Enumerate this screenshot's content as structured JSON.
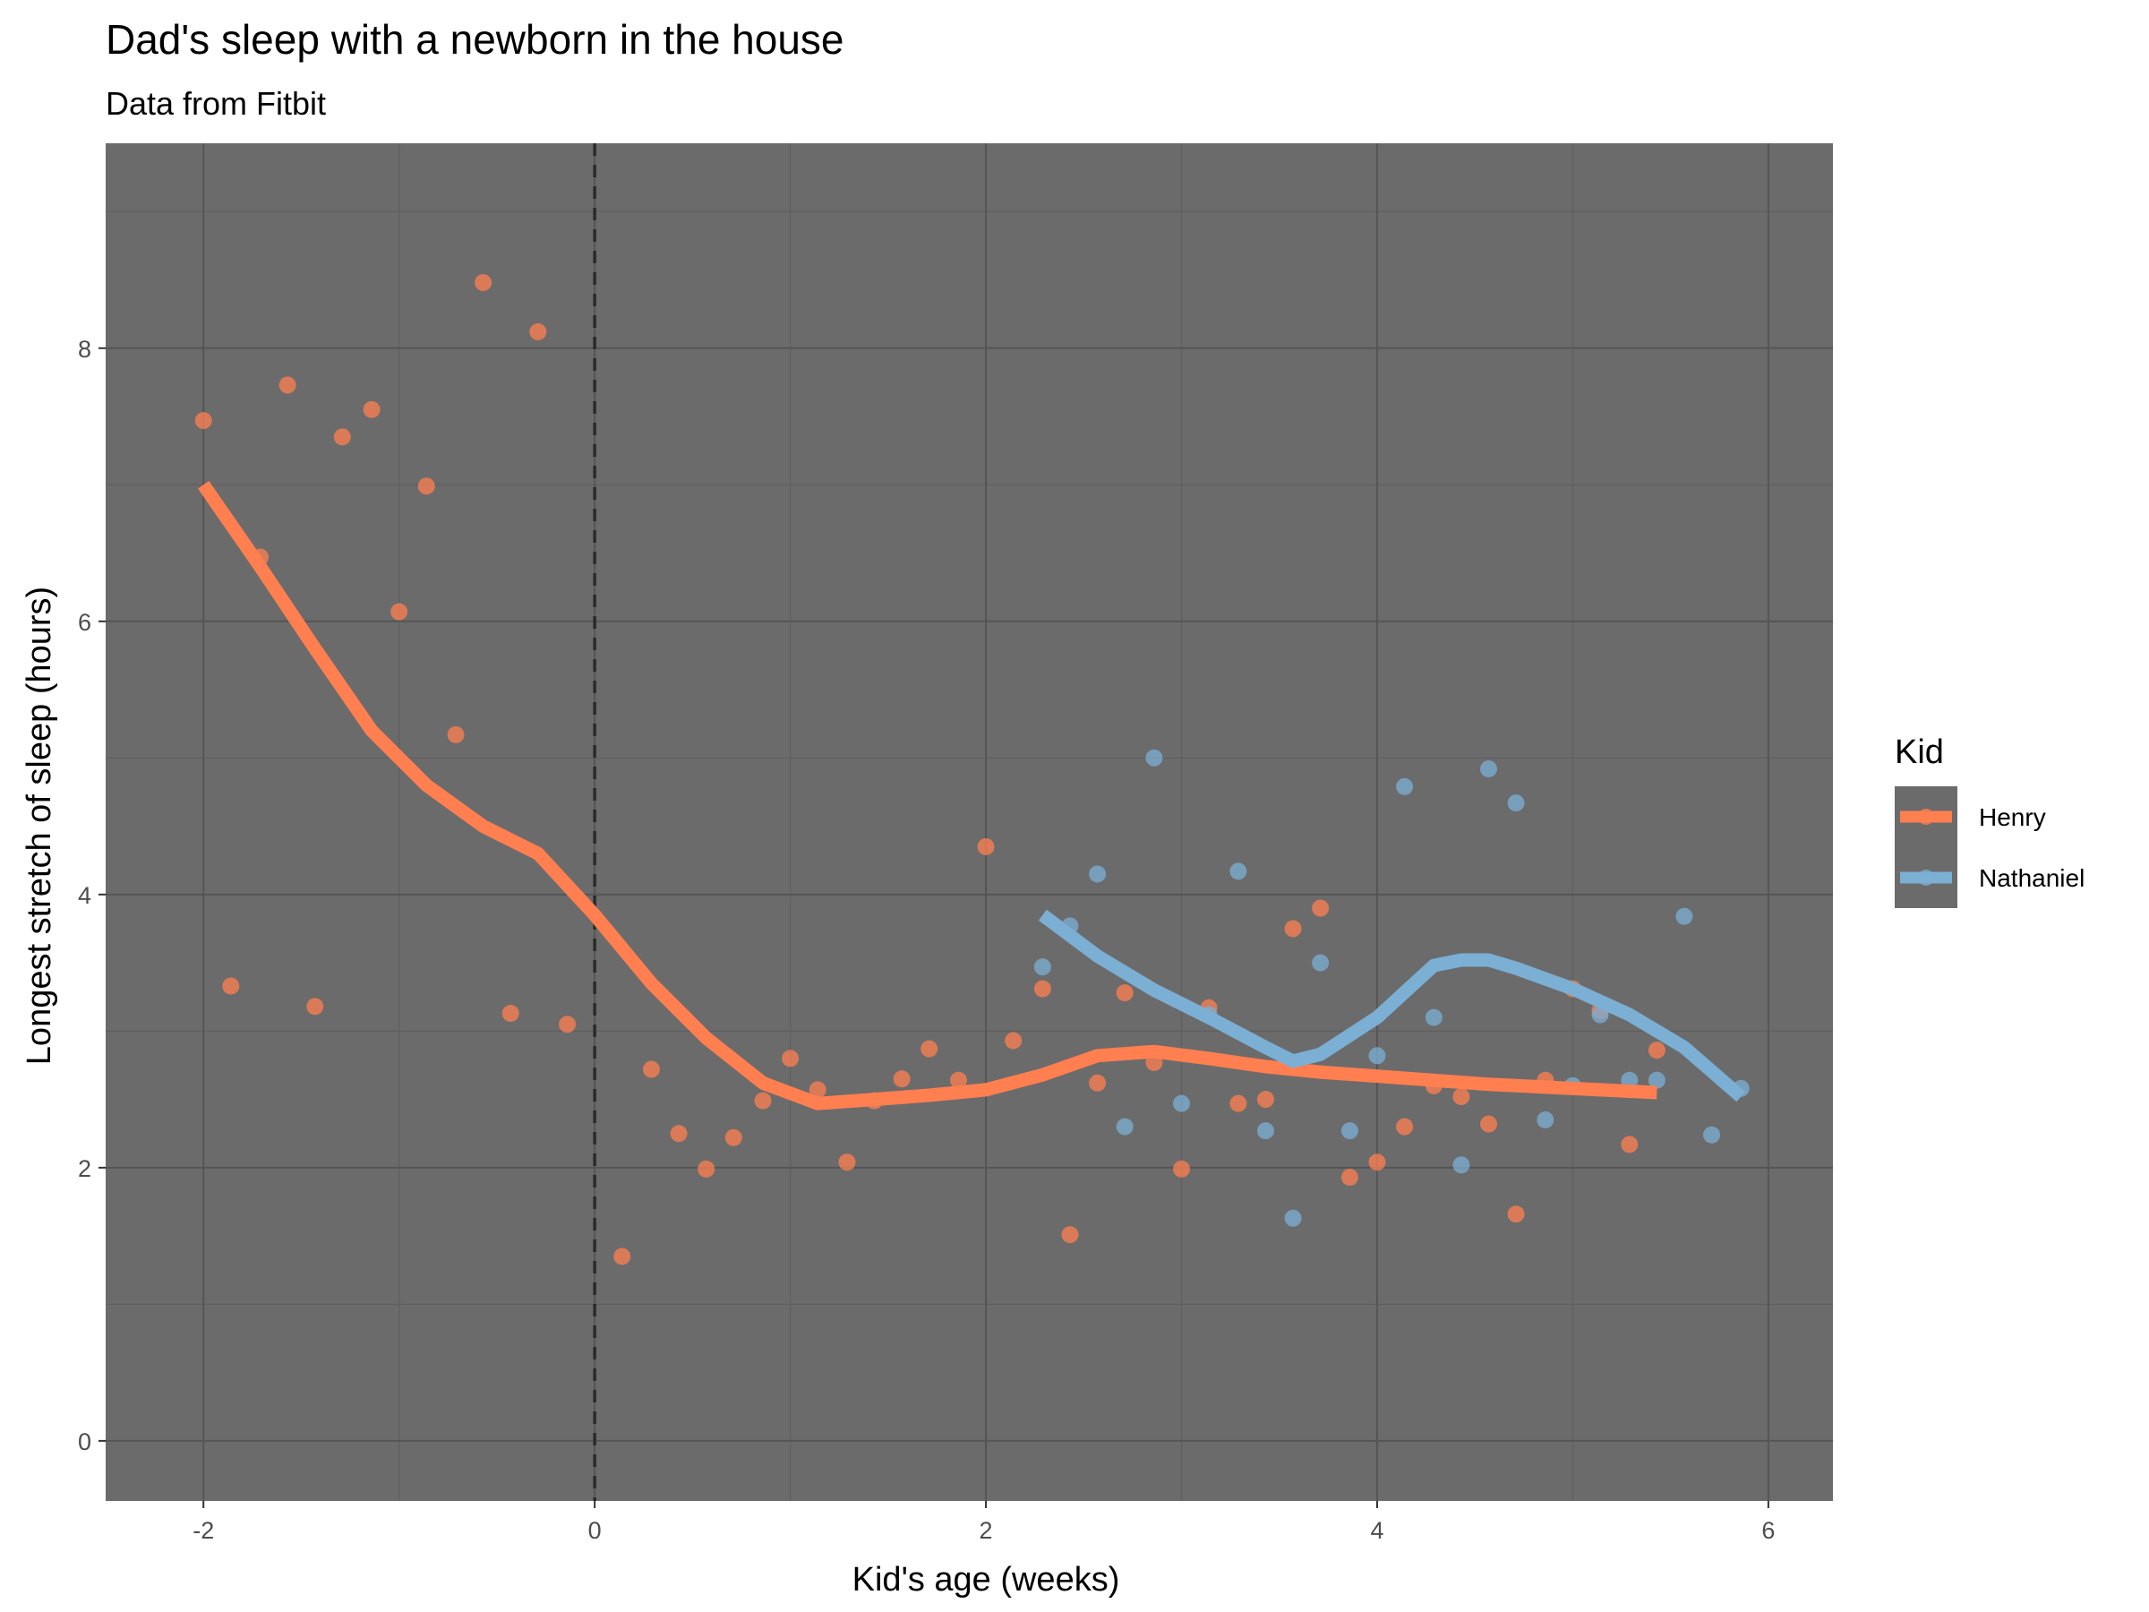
{
  "chart_data": {
    "type": "scatter",
    "title": "Dad's sleep with a newborn in the house",
    "subtitle": "Data from Fitbit",
    "xlabel": "Kid's age (weeks)",
    "ylabel": "Longest stretch of sleep (hours)",
    "xlim": [
      -2.5,
      6.33
    ],
    "ylim": [
      -0.44,
      9.5
    ],
    "x_ticks": [
      -2,
      0,
      2,
      4,
      6
    ],
    "x_tick_labels": [
      "-2",
      "0",
      "2",
      "4",
      "6"
    ],
    "y_ticks": [
      0,
      2,
      4,
      6,
      8
    ],
    "y_tick_labels": [
      "0",
      "2",
      "4",
      "6",
      "8"
    ],
    "reference_line": {
      "x": 0,
      "style": "dashed"
    },
    "grid": true,
    "legend": {
      "title": "Kid",
      "position": "right"
    },
    "series": [
      {
        "name": "Henry",
        "color": "#FF7F50",
        "points": [
          [
            -2.0,
            7.47
          ],
          [
            -1.86,
            3.33
          ],
          [
            -1.71,
            6.47
          ],
          [
            -1.57,
            7.73
          ],
          [
            -1.43,
            3.18
          ],
          [
            -1.29,
            7.35
          ],
          [
            -1.14,
            7.55
          ],
          [
            -1.0,
            6.07
          ],
          [
            -0.86,
            6.99
          ],
          [
            -0.71,
            5.17
          ],
          [
            -0.57,
            8.48
          ],
          [
            -0.43,
            3.13
          ],
          [
            -0.29,
            8.12
          ],
          [
            -0.14,
            3.05
          ],
          [
            0.14,
            1.35
          ],
          [
            0.29,
            2.72
          ],
          [
            0.43,
            2.25
          ],
          [
            0.57,
            1.99
          ],
          [
            0.71,
            2.22
          ],
          [
            0.86,
            2.49
          ],
          [
            1.0,
            2.8
          ],
          [
            1.14,
            2.57
          ],
          [
            1.29,
            2.04
          ],
          [
            1.43,
            2.49
          ],
          [
            1.57,
            2.65
          ],
          [
            1.71,
            2.87
          ],
          [
            1.86,
            2.64
          ],
          [
            2.0,
            4.35
          ],
          [
            2.14,
            2.93
          ],
          [
            2.29,
            3.31
          ],
          [
            2.43,
            1.51
          ],
          [
            2.57,
            2.62
          ],
          [
            2.71,
            3.28
          ],
          [
            2.86,
            2.77
          ],
          [
            3.0,
            1.99
          ],
          [
            3.14,
            3.17
          ],
          [
            3.29,
            2.47
          ],
          [
            3.43,
            2.5
          ],
          [
            3.57,
            3.75
          ],
          [
            3.71,
            3.9
          ],
          [
            3.86,
            1.93
          ],
          [
            4.0,
            2.04
          ],
          [
            4.14,
            2.3
          ],
          [
            4.29,
            2.6
          ],
          [
            4.43,
            2.52
          ],
          [
            4.57,
            2.32
          ],
          [
            4.71,
            1.66
          ],
          [
            4.86,
            2.64
          ],
          [
            5.0,
            3.31
          ],
          [
            5.14,
            3.15
          ],
          [
            5.29,
            2.17
          ],
          [
            5.43,
            2.86
          ]
        ],
        "smooth": [
          [
            -2.0,
            7.0
          ],
          [
            -1.71,
            6.4
          ],
          [
            -1.43,
            5.8
          ],
          [
            -1.14,
            5.2
          ],
          [
            -0.86,
            4.8
          ],
          [
            -0.57,
            4.5
          ],
          [
            -0.29,
            4.3
          ],
          [
            0.0,
            3.85
          ],
          [
            0.29,
            3.35
          ],
          [
            0.57,
            2.95
          ],
          [
            0.86,
            2.62
          ],
          [
            1.14,
            2.47
          ],
          [
            1.43,
            2.5
          ],
          [
            1.71,
            2.53
          ],
          [
            2.0,
            2.57
          ],
          [
            2.29,
            2.68
          ],
          [
            2.57,
            2.82
          ],
          [
            2.86,
            2.85
          ],
          [
            3.14,
            2.8
          ],
          [
            3.43,
            2.74
          ],
          [
            3.71,
            2.7
          ],
          [
            4.0,
            2.67
          ],
          [
            4.29,
            2.64
          ],
          [
            4.57,
            2.61
          ],
          [
            4.86,
            2.59
          ],
          [
            5.14,
            2.57
          ],
          [
            5.43,
            2.55
          ]
        ]
      },
      {
        "name": "Nathaniel",
        "color": "#7BAFD4",
        "points": [
          [
            2.29,
            3.47
          ],
          [
            2.43,
            3.77
          ],
          [
            2.57,
            4.15
          ],
          [
            2.71,
            2.3
          ],
          [
            2.86,
            5.0
          ],
          [
            3.0,
            2.47
          ],
          [
            3.14,
            3.12
          ],
          [
            3.29,
            4.17
          ],
          [
            3.43,
            2.27
          ],
          [
            3.57,
            1.63
          ],
          [
            3.71,
            3.5
          ],
          [
            3.86,
            2.27
          ],
          [
            4.0,
            2.82
          ],
          [
            4.14,
            4.79
          ],
          [
            4.29,
            3.1
          ],
          [
            4.43,
            2.02
          ],
          [
            4.57,
            4.92
          ],
          [
            4.71,
            4.67
          ],
          [
            4.86,
            2.35
          ],
          [
            5.0,
            2.6
          ],
          [
            5.14,
            3.12
          ],
          [
            5.29,
            2.64
          ],
          [
            5.43,
            2.64
          ],
          [
            5.57,
            3.84
          ],
          [
            5.71,
            2.24
          ],
          [
            5.86,
            2.58
          ]
        ],
        "smooth": [
          [
            2.29,
            3.85
          ],
          [
            2.57,
            3.55
          ],
          [
            2.86,
            3.3
          ],
          [
            3.14,
            3.1
          ],
          [
            3.43,
            2.88
          ],
          [
            3.57,
            2.78
          ],
          [
            3.71,
            2.83
          ],
          [
            4.0,
            3.1
          ],
          [
            4.29,
            3.48
          ],
          [
            4.43,
            3.52
          ],
          [
            4.57,
            3.52
          ],
          [
            4.71,
            3.46
          ],
          [
            5.0,
            3.31
          ],
          [
            5.29,
            3.12
          ],
          [
            5.57,
            2.88
          ],
          [
            5.86,
            2.52
          ]
        ]
      }
    ]
  }
}
